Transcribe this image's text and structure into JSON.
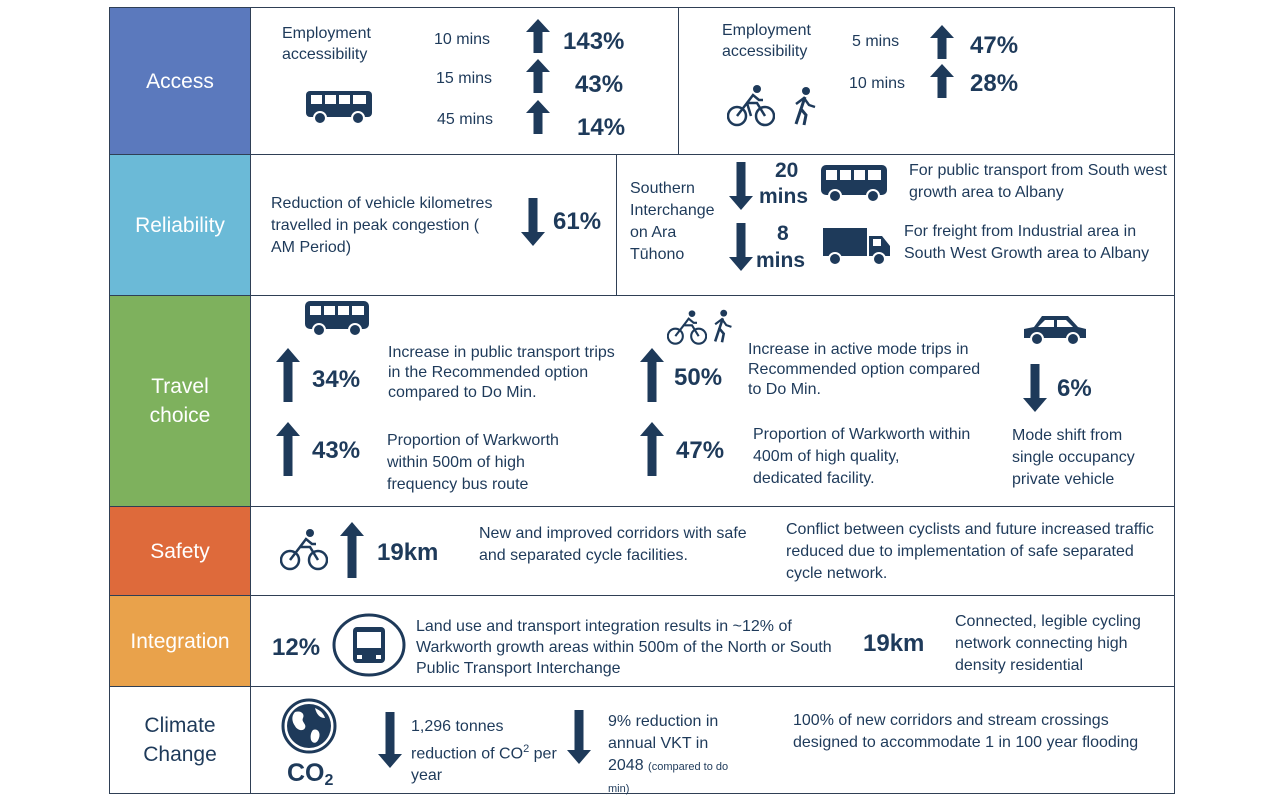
{
  "colors": {
    "access": "#5b79bd",
    "reliability": "#6bbad7",
    "travel_choice": "#7eb15d",
    "safety": "#de6a3b",
    "integration": "#e9a24b",
    "climate": "#ffffff",
    "icon": "#1e3a5a"
  },
  "rows": {
    "access": {
      "label": "Access",
      "bus": {
        "title": "Employment accessibility",
        "icon": "bus-icon",
        "items": [
          {
            "time": "10 mins",
            "value": "143%",
            "direction": "up"
          },
          {
            "time": "15 mins",
            "value": "43%",
            "direction": "up"
          },
          {
            "time": "45 mins",
            "value": "14%",
            "direction": "up"
          }
        ]
      },
      "active": {
        "title": "Employment accessibility",
        "icons": [
          "bicycle-icon",
          "walking-icon"
        ],
        "items": [
          {
            "time": "5 mins",
            "value": "47%",
            "direction": "up"
          },
          {
            "time": "10 mins",
            "value": "28%",
            "direction": "up"
          }
        ]
      }
    },
    "reliability": {
      "label": "Reliability",
      "vkt": {
        "text": "Reduction of vehicle kilometres travelled in peak congestion ( AM Period)",
        "value": "61%",
        "direction": "down"
      },
      "interchange": "Southern Interchange on Ara Tūhono",
      "pt": {
        "value_top": "20",
        "value_bottom": "mins",
        "text": "For public transport from South west growth area to Albany",
        "direction": "down"
      },
      "freight": {
        "value_top": "8",
        "value_bottom": "mins",
        "text": "For freight from Industrial area in South West Growth area to Albany",
        "direction": "down"
      }
    },
    "travel_choice": {
      "label": "Travel choice",
      "pt_trips": {
        "value": "34%",
        "text": "Increase in public transport trips in the Recommended option compared to Do Min.",
        "direction": "up"
      },
      "pt_proximity": {
        "value": "43%",
        "text": "Proportion of Warkworth within 500m of high frequency bus route",
        "direction": "up"
      },
      "active_trips": {
        "value": "50%",
        "text": "Increase in active mode trips in Recommended option compared to Do Min.",
        "direction": "up"
      },
      "active_proximity": {
        "value": "47%",
        "text": "Proportion of Warkworth within 400m of high quality, dedicated facility.",
        "direction": "up"
      },
      "mode_shift": {
        "value": "6%",
        "text": "Mode shift from single occupancy private vehicle",
        "direction": "down"
      }
    },
    "safety": {
      "label": "Safety",
      "value": "19km",
      "direction": "up",
      "text1": "New and improved corridors with safe and separated cycle facilities.",
      "text2": "Conflict between cyclists and future increased traffic reduced due to implementation of safe separated cycle network."
    },
    "integration": {
      "label": "Integration",
      "value1": "12%",
      "text1": "Land use and transport integration results in ~12% of Warkworth growth areas within 500m of the North or South Public Transport Interchange",
      "value2": "19km",
      "text2": "Connected, legible cycling network connecting high density residential"
    },
    "climate": {
      "label": "Climate Change",
      "co2_label": "CO",
      "co2_sub": "2",
      "co2": {
        "text": "1,296 tonnes reduction of CO",
        "sup": "2",
        "text_end": "per year",
        "direction": "down"
      },
      "vkt": {
        "text": "9% reduction in annual VKT in 2048",
        "note": "(compared to do min)",
        "direction": "down"
      },
      "flooding": "100% of new corridors and stream crossings designed to accommodate 1 in 100 year flooding"
    }
  }
}
